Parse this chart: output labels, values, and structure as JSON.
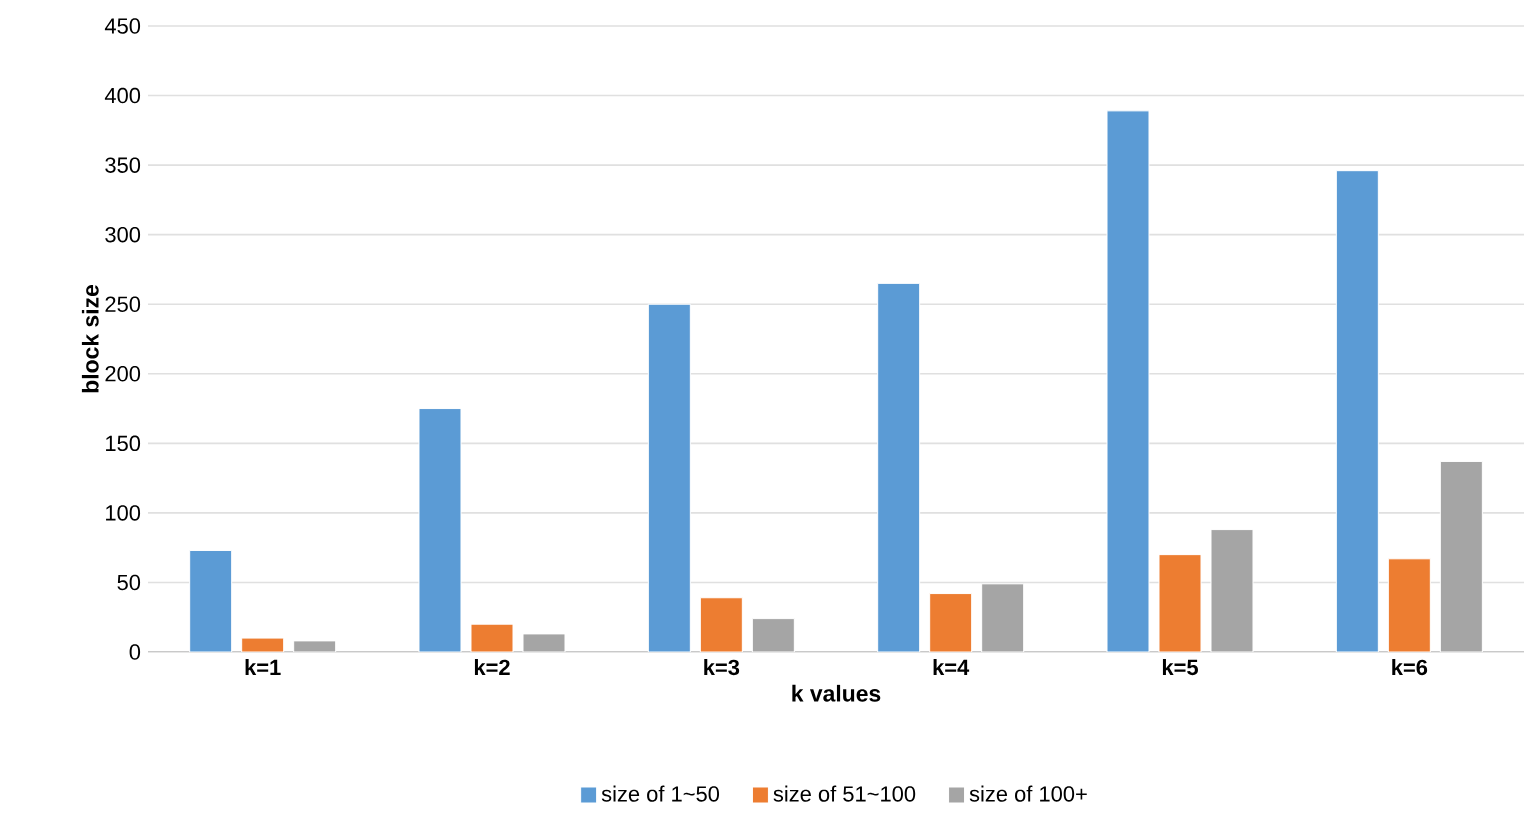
{
  "chart_data": {
    "type": "bar",
    "xlabel": "k values",
    "ylabel": "block size",
    "categories": [
      "k=1",
      "k=2",
      "k=3",
      "k=4",
      "k=5",
      "k=6"
    ],
    "series": [
      {
        "name": "size of 1~50",
        "color": "#5b9bd5",
        "values": [
          73,
          175,
          250,
          265,
          389,
          346
        ]
      },
      {
        "name": "size of 51~100",
        "color": "#ed7d31",
        "values": [
          10,
          20,
          39,
          42,
          70,
          67
        ]
      },
      {
        "name": "size of 100+",
        "color": "#a5a5a5",
        "values": [
          8,
          13,
          24,
          49,
          88,
          137
        ]
      }
    ],
    "ylim": [
      0,
      450
    ],
    "yticks": [
      0,
      50,
      100,
      150,
      200,
      250,
      300,
      350,
      400,
      450
    ],
    "grid": "y",
    "legend": "bottom"
  }
}
